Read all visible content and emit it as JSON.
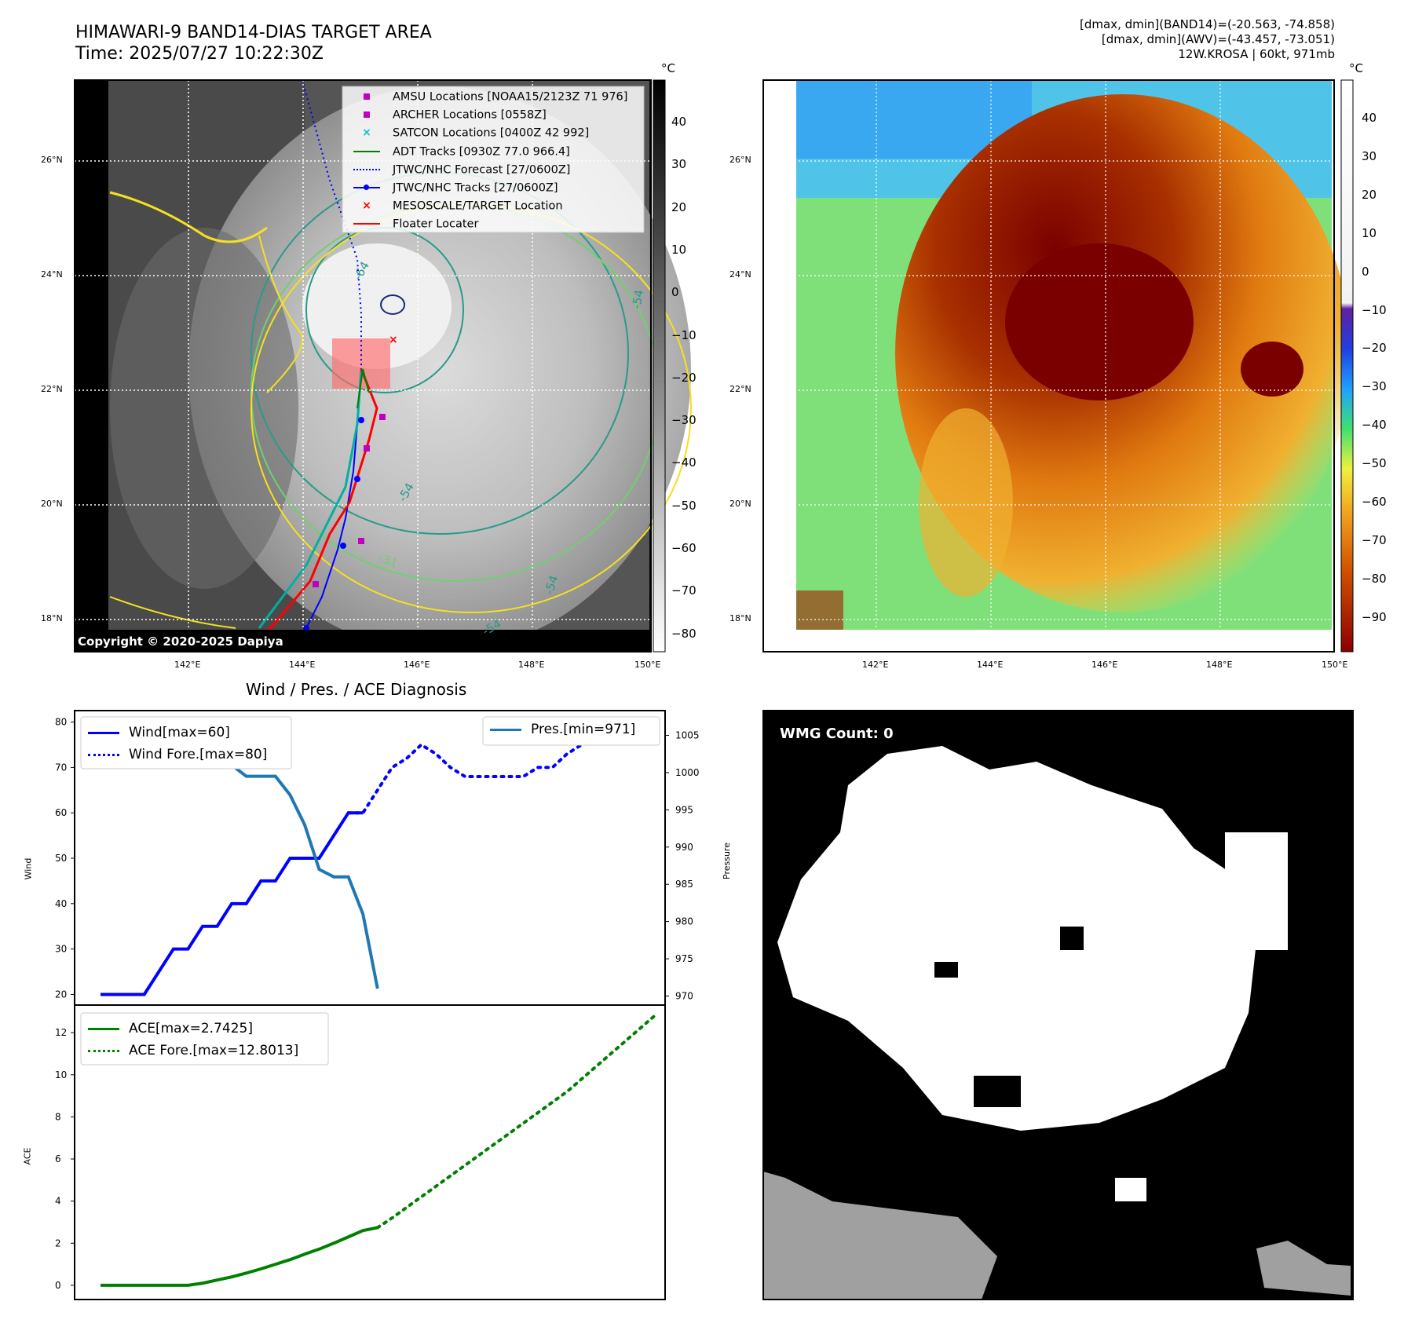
{
  "header": {
    "title_line1": "HIMAWARI-9 BAND14-DIAS TARGET AREA",
    "title_line2": "Time: 2025/07/27 10:22:30Z",
    "stats_line1": "[dmax, dmin](BAND14)=(-20.563, -74.858)",
    "stats_line2": "[dmax, dmin](AWV)=(-43.457, -73.051)",
    "stats_line3": "12W.KROSA | 60kt, 971mb"
  },
  "map": {
    "lat_labels": [
      "26°N",
      "24°N",
      "22°N",
      "20°N",
      "18°N"
    ],
    "lon_labels": [
      "142°E",
      "144°E",
      "146°E",
      "148°E",
      "150°E"
    ],
    "copyright": "Copyright © 2020-2025 Dapiya",
    "legend": [
      {
        "label": "AMSU Locations [NOAA15/2123Z 71 976]",
        "color": "#bf00bf",
        "marker": "square"
      },
      {
        "label": "ARCHER Locations [0558Z]",
        "color": "#bf00bf",
        "marker": "square"
      },
      {
        "label": "SATCON Locations [0400Z 42 992]",
        "color": "#17becf",
        "marker": "x"
      },
      {
        "label": "ADT Tracks [0930Z 77.0 966.4]",
        "color": "#008000",
        "marker": "line"
      },
      {
        "label": "JTWC/NHC Forecast [27/0600Z]",
        "color": "#0000ff",
        "marker": "dotted"
      },
      {
        "label": "JTWC/NHC Tracks [27/0600Z]",
        "color": "#0000ff",
        "marker": "line-dot"
      },
      {
        "label": "MESOSCALE/TARGET Location",
        "color": "#ff0000",
        "marker": "x"
      },
      {
        "label": "Floater Locater",
        "color": "#ff0000",
        "marker": "line"
      }
    ],
    "contour_labels": [
      "-64",
      "-54",
      "-54",
      "-31",
      "-54",
      "-54"
    ]
  },
  "colorbar_gray": {
    "unit": "°C",
    "ticks": [
      "40",
      "30",
      "20",
      "10",
      "0",
      "−10",
      "−20",
      "−30",
      "−40",
      "−50",
      "−60",
      "−70",
      "−80"
    ]
  },
  "colorbar_awv": {
    "unit": "°C",
    "ticks": [
      "40",
      "30",
      "20",
      "10",
      "0",
      "−10",
      "−20",
      "−30",
      "−40",
      "−50",
      "−60",
      "−70",
      "−80",
      "−90"
    ]
  },
  "diagnosis": {
    "title": "Wind / Pres. / ACE Diagnosis",
    "wind_axis_label": "Wind",
    "pressure_axis_label": "Pressure",
    "ace_axis_label": "ACE",
    "legend_wind": "Wind[max=60]",
    "legend_wind_fore": "Wind Fore.[max=80]",
    "legend_pres": "Pres.[min=971]",
    "legend_ace": "ACE[max=2.7425]",
    "legend_ace_fore": "ACE Fore.[max=12.8013]"
  },
  "wmg": {
    "badge": "WMG Count: 0"
  },
  "chart_data": [
    {
      "type": "line",
      "name": "wind_pressure",
      "x": [
        0,
        1,
        2,
        3,
        4,
        5,
        6,
        7,
        8,
        9,
        10,
        11,
        12,
        13,
        14,
        15,
        16,
        17,
        18,
        19
      ],
      "series": [
        {
          "name": "Wind[max=60]",
          "axis": "left",
          "style": "solid",
          "color": "#0000ff",
          "values": [
            20,
            20,
            20,
            20,
            25,
            30,
            30,
            35,
            35,
            40,
            40,
            45,
            45,
            50,
            50,
            50,
            55,
            60,
            60,
            null
          ]
        },
        {
          "name": "Wind Fore.[max=80]",
          "axis": "left",
          "style": "dotted",
          "color": "#0000ff",
          "x": [
            17,
            18,
            19,
            20,
            21,
            22,
            23,
            24,
            25,
            26,
            27,
            28,
            29,
            30,
            31,
            32,
            33,
            34,
            35,
            36
          ],
          "values": [
            60,
            60,
            65,
            70,
            72,
            75,
            73,
            70,
            68,
            68,
            68,
            68,
            68,
            70,
            70,
            73,
            75,
            78,
            80,
            80
          ]
        },
        {
          "name": "Pres.[min=971]",
          "axis": "right",
          "style": "solid",
          "color": "#1f77b4",
          "values": [
            1006,
            1006,
            1006,
            1006,
            1004,
            1004,
            1003,
            1003,
            1001,
            1001,
            999.5,
            999.5,
            999.5,
            997,
            993,
            987,
            986,
            986,
            981,
            971
          ]
        }
      ],
      "ylim": [
        18,
        82
      ],
      "ylim_right": [
        969,
        1008
      ],
      "yticks": [
        20,
        30,
        40,
        50,
        60,
        70,
        80
      ],
      "yticks_right": [
        970,
        975,
        980,
        985,
        990,
        995,
        1000,
        1005
      ]
    },
    {
      "type": "line",
      "name": "ace",
      "x": [
        0,
        1,
        2,
        3,
        4,
        5,
        6,
        7,
        8,
        9,
        10,
        11,
        12,
        13,
        14,
        15,
        16,
        17,
        18,
        19
      ],
      "series": [
        {
          "name": "ACE[max=2.7425]",
          "style": "solid",
          "color": "#008000",
          "values": [
            0,
            0,
            0,
            0,
            0,
            0,
            0,
            0.1,
            0.25,
            0.4,
            0.58,
            0.78,
            1.0,
            1.22,
            1.48,
            1.72,
            2.0,
            2.3,
            2.6,
            2.74
          ]
        },
        {
          "name": "ACE Fore.[max=12.8013]",
          "style": "dotted",
          "color": "#008000",
          "x": [
            19,
            20,
            21,
            22,
            23,
            24,
            25,
            26,
            27,
            28,
            29,
            30,
            31,
            32,
            33,
            34,
            35,
            36,
            37,
            38
          ],
          "values": [
            2.74,
            3.2,
            3.7,
            4.2,
            4.7,
            5.2,
            5.7,
            6.2,
            6.7,
            7.2,
            7.7,
            8.2,
            8.7,
            9.2,
            9.8,
            10.4,
            11.0,
            11.6,
            12.2,
            12.8
          ]
        }
      ],
      "ylim": [
        -0.6,
        13.2
      ],
      "yticks": [
        0,
        2,
        4,
        6,
        8,
        10,
        12
      ]
    }
  ]
}
